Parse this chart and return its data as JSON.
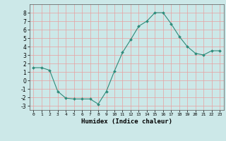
{
  "x": [
    0,
    1,
    2,
    3,
    4,
    5,
    6,
    7,
    8,
    9,
    10,
    11,
    12,
    13,
    14,
    15,
    16,
    17,
    18,
    19,
    20,
    21,
    22,
    23
  ],
  "y": [
    1.5,
    1.5,
    1.2,
    -1.3,
    -2.1,
    -2.2,
    -2.2,
    -2.2,
    -2.8,
    -1.3,
    1.1,
    3.3,
    4.8,
    6.4,
    7.0,
    8.0,
    8.0,
    6.7,
    5.2,
    4.0,
    3.2,
    3.0,
    3.5,
    3.5
  ],
  "xlabel": "Humidex (Indice chaleur)",
  "line_color": "#2e8b7a",
  "marker": "D",
  "marker_size": 2.0,
  "bg_color": "#cce8e8",
  "grid_color": "#e8a0a0",
  "ylim": [
    -3.5,
    9.0
  ],
  "xlim": [
    -0.5,
    23.5
  ],
  "yticks": [
    -3,
    -2,
    -1,
    0,
    1,
    2,
    3,
    4,
    5,
    6,
    7,
    8
  ],
  "xticks": [
    0,
    1,
    2,
    3,
    4,
    5,
    6,
    7,
    8,
    9,
    10,
    11,
    12,
    13,
    14,
    15,
    16,
    17,
    18,
    19,
    20,
    21,
    22,
    23
  ]
}
